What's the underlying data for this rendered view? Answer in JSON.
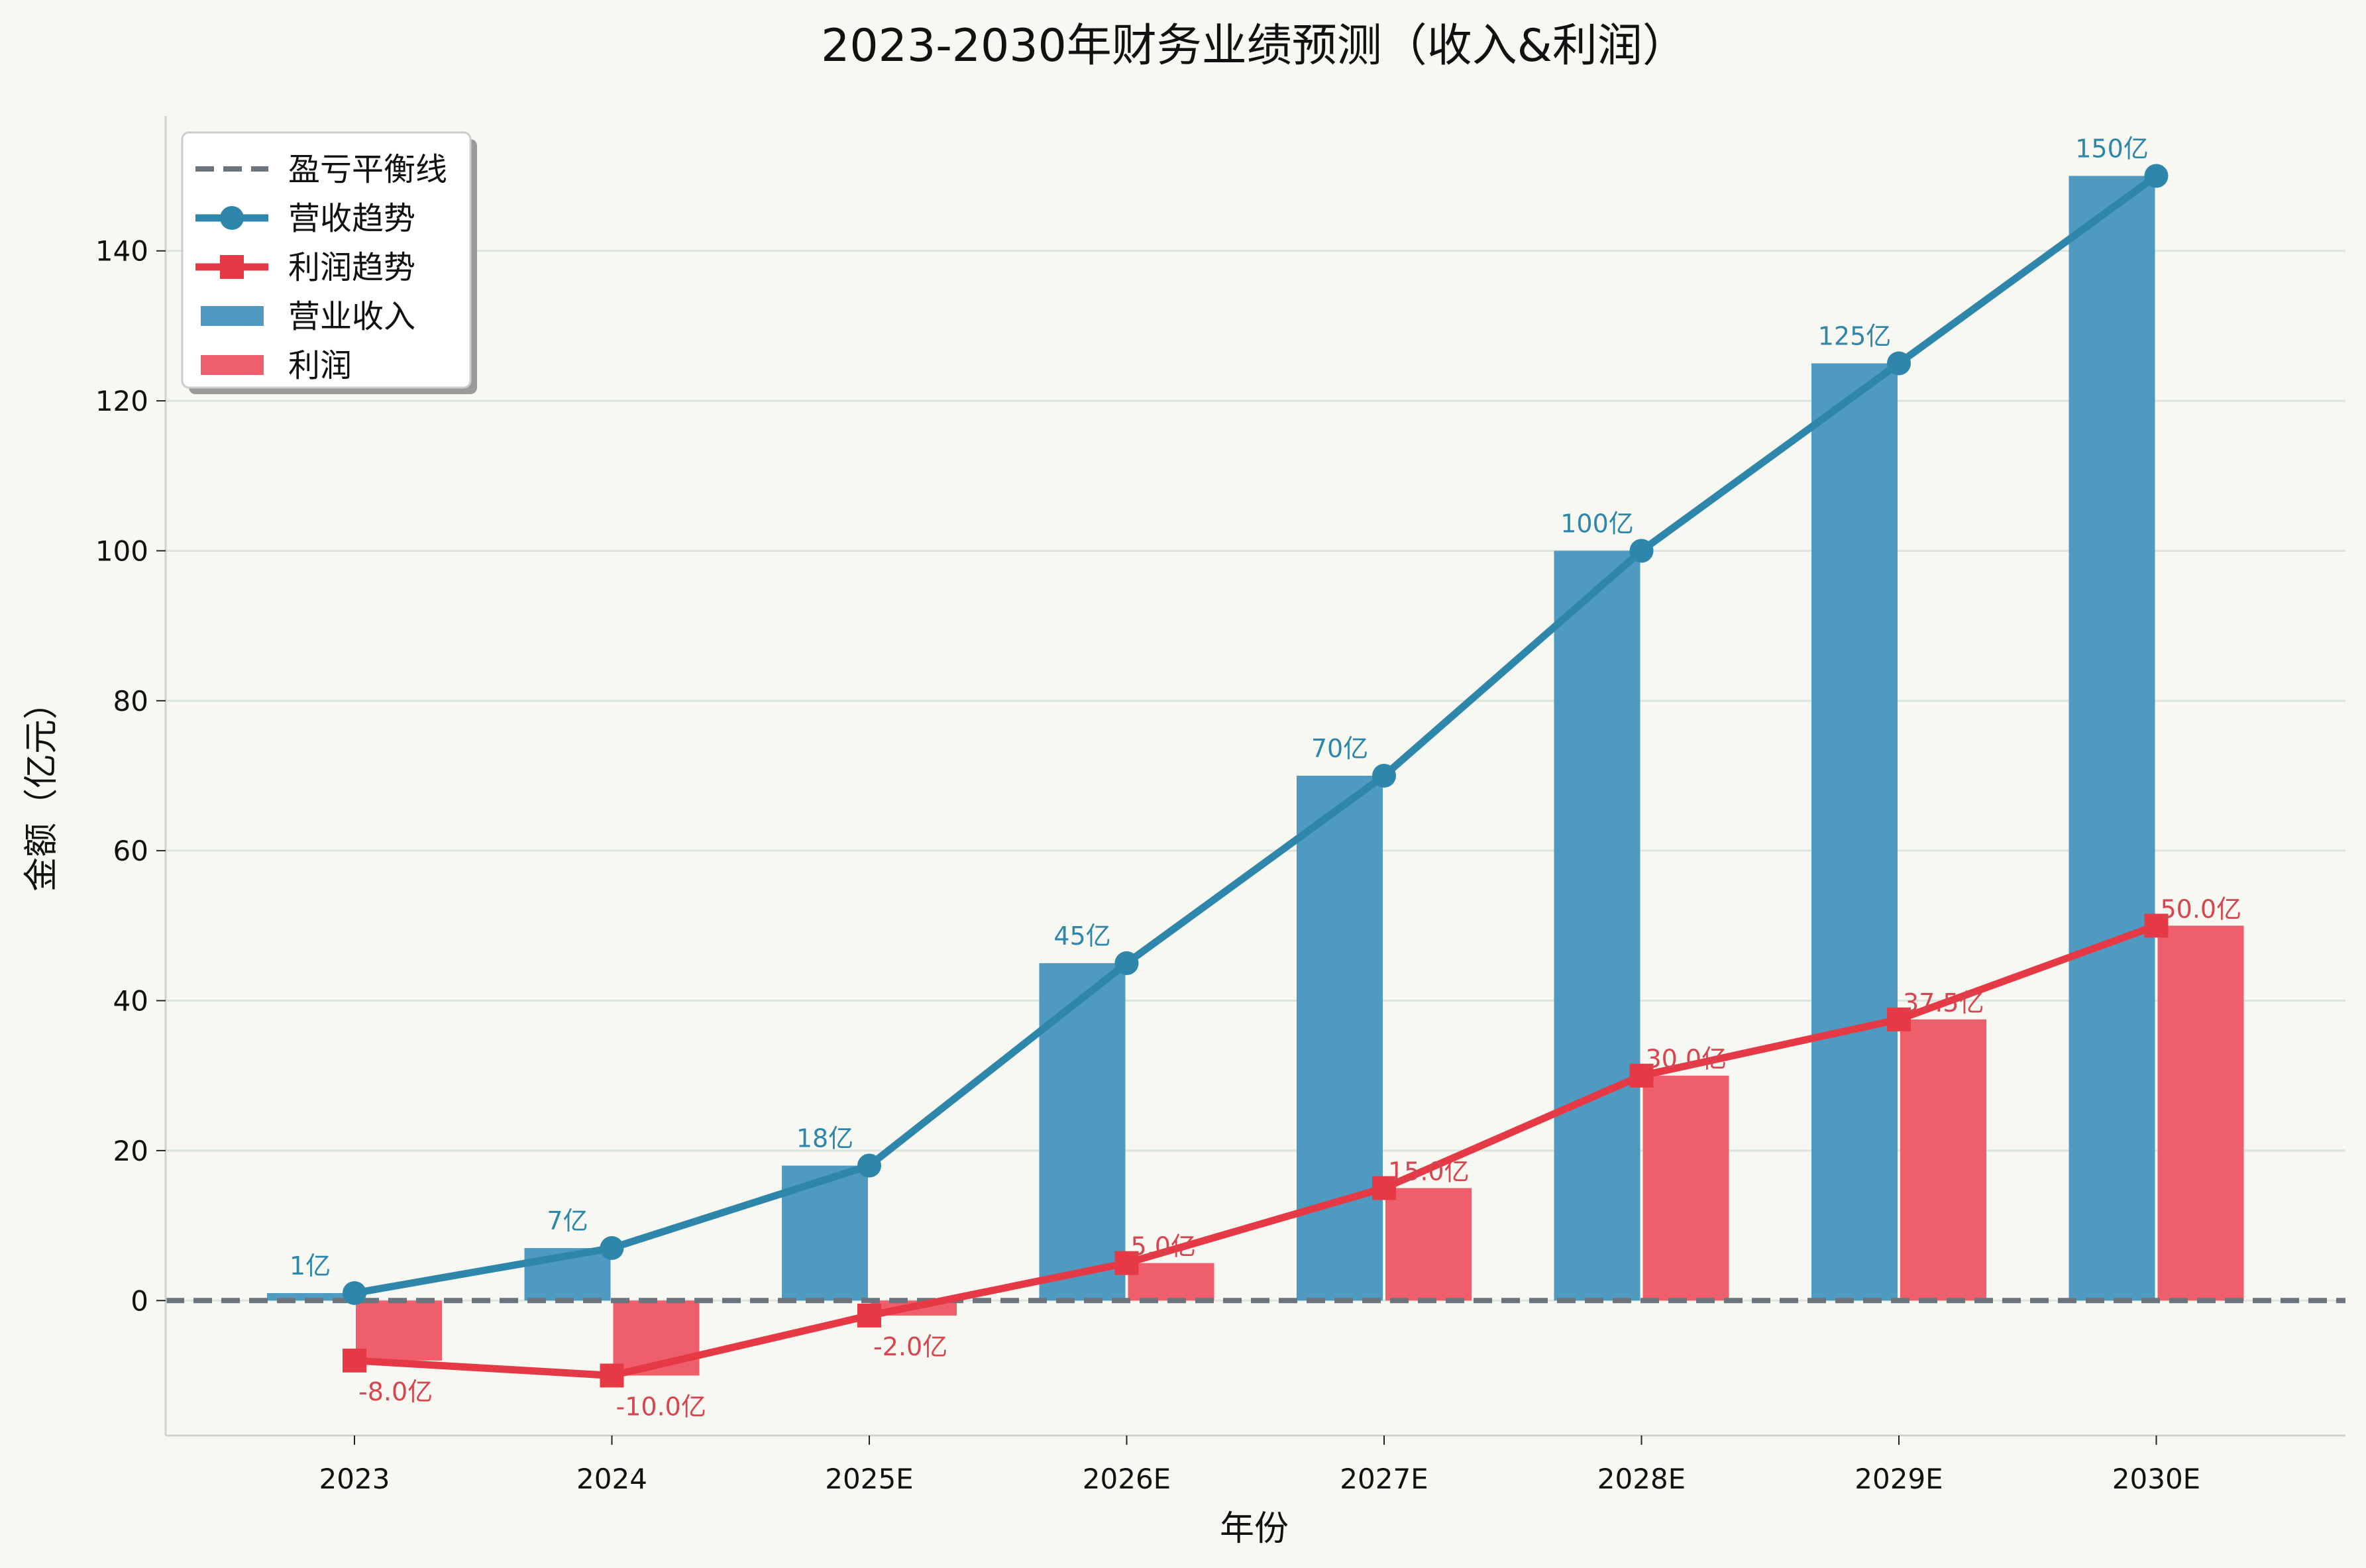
{
  "chart_data": {
    "type": "bar",
    "title": "2023-2030年财务业绩预测（收入&利润）",
    "xlabel": "年份",
    "ylabel": "金额（亿元）",
    "categories": [
      "2023",
      "2024",
      "2025E",
      "2026E",
      "2027E",
      "2028E",
      "2029E",
      "2030E"
    ],
    "ylim": [
      -18,
      158
    ],
    "yticks": [
      0,
      20,
      40,
      60,
      80,
      100,
      120,
      140
    ],
    "grid": true,
    "legend_position": "top-left",
    "series": [
      {
        "name": "营业收入",
        "kind": "bar",
        "color": "#4f9ac0",
        "values": [
          1,
          7,
          18,
          45,
          70,
          100,
          125,
          150
        ],
        "labels": [
          "1亿",
          "7亿",
          "18亿",
          "45亿",
          "70亿",
          "100亿",
          "125亿",
          "150亿"
        ]
      },
      {
        "name": "利润",
        "kind": "bar",
        "color": "#ef5f6b",
        "values": [
          -8,
          -10,
          -2,
          5,
          15,
          30,
          37.5,
          50
        ],
        "labels": [
          "-8.0亿",
          "-10.0亿",
          "-2.0亿",
          "5.0亿",
          "15.0亿",
          "30.0亿",
          "37.5亿",
          "50.0亿"
        ]
      },
      {
        "name": "营收趋势",
        "kind": "line",
        "marker": "circle",
        "color": "#2e86ab",
        "values": [
          1,
          7,
          18,
          45,
          70,
          100,
          125,
          150
        ]
      },
      {
        "name": "利润趋势",
        "kind": "line",
        "marker": "square",
        "color": "#e63946",
        "values": [
          -8,
          -10,
          -2,
          5,
          15,
          30,
          37.5,
          50
        ]
      }
    ],
    "reference_line": {
      "name": "盈亏平衡线",
      "value": 0,
      "style": "dashed",
      "color": "#6c757d"
    },
    "legend": [
      "盈亏平衡线",
      "营收趋势",
      "利润趋势",
      "营业收入",
      "利润"
    ]
  }
}
